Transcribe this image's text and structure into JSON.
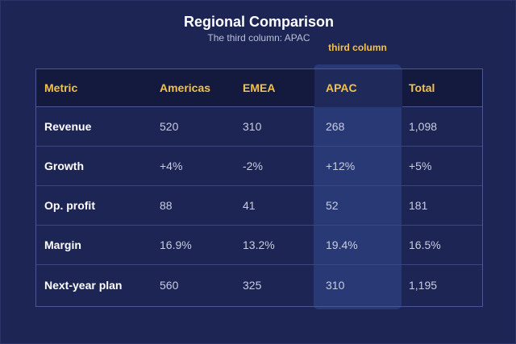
{
  "header": {
    "title": "Regional Comparison",
    "subtitle": "The third column: APAC",
    "highlight_label": "third column"
  },
  "table": {
    "columns": [
      "Metric",
      "Americas",
      "EMEA",
      "APAC",
      "Total"
    ],
    "rows": [
      {
        "metric": "Revenue",
        "values": [
          "520",
          "310",
          "268",
          "1,098"
        ]
      },
      {
        "metric": "Growth",
        "values": [
          "+4%",
          "-2%",
          "+12%",
          "+5%"
        ]
      },
      {
        "metric": "Op. profit",
        "values": [
          "88",
          "41",
          "52",
          "181"
        ]
      },
      {
        "metric": "Margin",
        "values": [
          "16.9%",
          "13.2%",
          "19.4%",
          "16.5%"
        ]
      },
      {
        "metric": "Next-year plan",
        "values": [
          "560",
          "325",
          "310",
          "1,195"
        ]
      }
    ],
    "highlighted_column": "APAC"
  },
  "colors": {
    "background": "#1c2554",
    "header_text": "#f2c14e",
    "highlight_band": "#2a3b78",
    "border": "#4a5896"
  }
}
